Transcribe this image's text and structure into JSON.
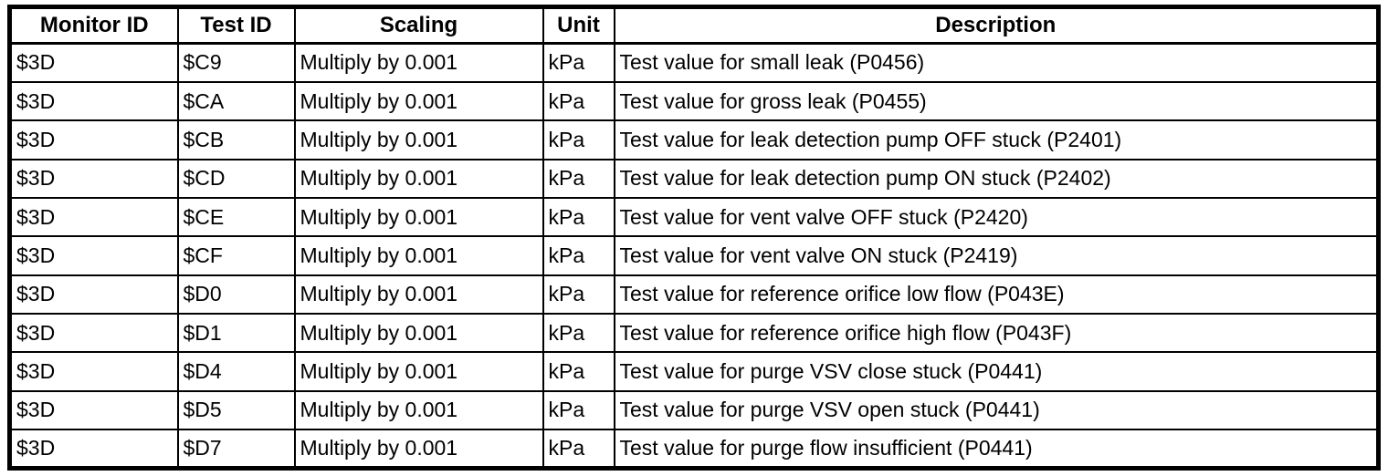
{
  "table": {
    "columns": [
      "Monitor ID",
      "Test ID",
      "Scaling",
      "Unit",
      "Description"
    ],
    "rows": [
      [
        "$3D",
        "$C9",
        "Multiply by 0.001",
        "kPa",
        "Test value for small leak (P0456)"
      ],
      [
        "$3D",
        "$CA",
        "Multiply by 0.001",
        "kPa",
        "Test value for gross leak (P0455)"
      ],
      [
        "$3D",
        "$CB",
        "Multiply by 0.001",
        "kPa",
        "Test value for leak detection pump OFF stuck (P2401)"
      ],
      [
        "$3D",
        "$CD",
        "Multiply by 0.001",
        "kPa",
        "Test value for leak detection pump ON stuck (P2402)"
      ],
      [
        "$3D",
        "$CE",
        "Multiply by 0.001",
        "kPa",
        "Test value for vent valve OFF stuck (P2420)"
      ],
      [
        "$3D",
        "$CF",
        "Multiply by 0.001",
        "kPa",
        "Test value for vent valve ON stuck (P2419)"
      ],
      [
        "$3D",
        "$D0",
        "Multiply by 0.001",
        "kPa",
        "Test value for reference orifice low flow (P043E)"
      ],
      [
        "$3D",
        "$D1",
        "Multiply by 0.001",
        "kPa",
        "Test value for reference orifice high flow (P043F)"
      ],
      [
        "$3D",
        "$D4",
        "Multiply by 0.001",
        "kPa",
        "Test value for purge VSV close stuck (P0441)"
      ],
      [
        "$3D",
        "$D5",
        "Multiply by 0.001",
        "kPa",
        "Test value for purge VSV open stuck (P0441)"
      ],
      [
        "$3D",
        "$D7",
        "Multiply by 0.001",
        "kPa",
        "Test value for purge flow insufficient (P0441)"
      ]
    ]
  },
  "colors": {
    "border": "#000000",
    "background": "#ffffff",
    "text": "#000000"
  }
}
